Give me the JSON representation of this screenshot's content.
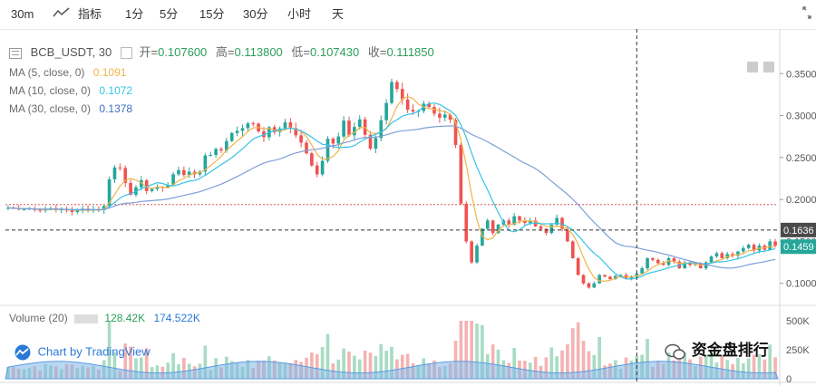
{
  "toolbar": {
    "interval": "30m",
    "indicators": "指标",
    "intervals": [
      "1分",
      "5分",
      "15分",
      "30分",
      "小时",
      "天"
    ]
  },
  "header": {
    "symbol": "BCB_USDT, 30",
    "open_label": "开=",
    "open": "0.107600",
    "high_label": "高=",
    "high": "0.113800",
    "low_label": "低=",
    "low": "0.107430",
    "close_label": "收=",
    "close": "0.111850",
    "ma5_label": "MA (5, close, 0)",
    "ma5": "0.1091",
    "ma10_label": "MA (10, close, 0)",
    "ma10": "0.1072",
    "ma30_label": "MA (30, close, 0)",
    "ma30": "0.1378",
    "volume_label": "Volume (20)",
    "vol1": "128.42K",
    "vol2": "174.522K"
  },
  "watermark": "Chart by TradingView",
  "wechat_text": "资金盘排行",
  "colors": {
    "up": "#26a69a",
    "down": "#ef5350",
    "ma5": "#f0b44c",
    "ma10": "#35c3e6",
    "ma30": "#7e9fd8"
  },
  "chart_data": {
    "type": "candlestick",
    "price_axis": {
      "min": 0.09,
      "max": 0.36,
      "ticks": [
        "0.3500",
        "0.3000",
        "0.2500",
        "0.2000",
        "0.1500",
        "0.1000"
      ]
    },
    "volume_axis": {
      "ticks": [
        "500K",
        "250K",
        "0"
      ]
    },
    "marked_prices": {
      "crosshair": "0.1636",
      "last": "0.1459",
      "reference": 0.194
    },
    "crosshair_index": 118,
    "closes": [
      0.19,
      0.1895,
      0.188,
      0.1885,
      0.189,
      0.1875,
      0.187,
      0.188,
      0.1895,
      0.1878,
      0.1882,
      0.1868,
      0.185,
      0.1872,
      0.189,
      0.1872,
      0.188,
      0.1873,
      0.1923,
      0.224,
      0.2382,
      0.2375,
      0.2197,
      0.2057,
      0.2146,
      0.2229,
      0.21,
      0.2125,
      0.215,
      0.2141,
      0.2174,
      0.23,
      0.235,
      0.2292,
      0.2331,
      0.2299,
      0.2333,
      0.2525,
      0.253,
      0.2602,
      0.2584,
      0.2697,
      0.2792,
      0.2818,
      0.285,
      0.2907,
      0.2904,
      0.2811,
      0.2742,
      0.2862,
      0.2802,
      0.2846,
      0.292,
      0.285,
      0.2765,
      0.2677,
      0.255,
      0.2405,
      0.2299,
      0.246,
      0.2724,
      0.2667,
      0.2751,
      0.294,
      0.2765,
      0.2864,
      0.2955,
      0.2771,
      0.2606,
      0.2733,
      0.2945,
      0.315,
      0.34,
      0.3317,
      0.3192,
      0.3069,
      0.3048,
      0.3055,
      0.3142,
      0.3102,
      0.3023,
      0.2975,
      0.3012,
      0.295,
      0.265,
      0.195,
      0.15,
      0.125,
      0.145,
      0.165,
      0.175,
      0.16,
      0.17,
      0.175,
      0.17,
      0.18,
      0.175,
      0.172,
      0.175,
      0.168,
      0.165,
      0.16,
      0.17,
      0.178,
      0.165,
      0.15,
      0.13,
      0.11,
      0.1,
      0.095,
      0.1,
      0.11,
      0.108,
      0.105,
      0.109,
      0.11,
      0.106,
      0.108,
      0.1118,
      0.118,
      0.13,
      0.128,
      0.124,
      0.122,
      0.13,
      0.126,
      0.118,
      0.125,
      0.122,
      0.124,
      0.118,
      0.125,
      0.132,
      0.136,
      0.13,
      0.135,
      0.133,
      0.138,
      0.142,
      0.146,
      0.139,
      0.145,
      0.14,
      0.15,
      0.145
    ]
  }
}
